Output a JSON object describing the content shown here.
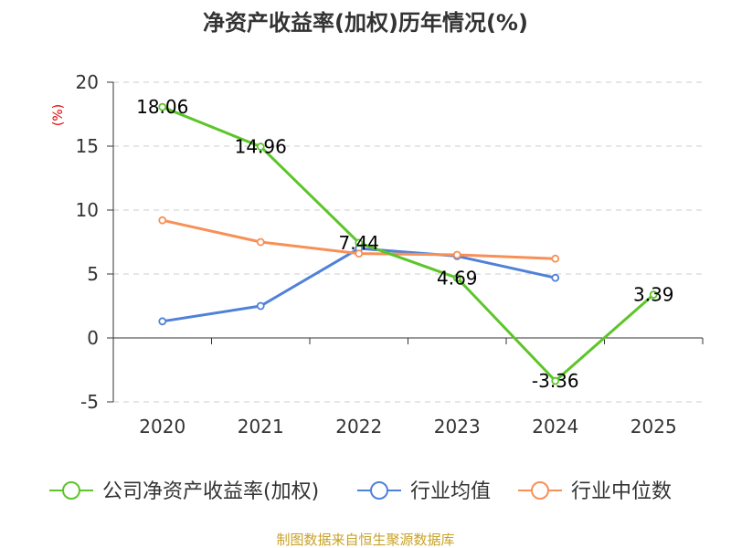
{
  "title": "净资产收益率(加权)历年情况(%)",
  "source": "制图数据来自恒生聚源数据库",
  "chart_data": {
    "type": "line",
    "title": "净资产收益率(加权)历年情况(%)",
    "ylabel": "(%)",
    "xlabel": "",
    "categories": [
      "2020",
      "2021",
      "2022",
      "2023",
      "2024",
      "2025"
    ],
    "ylim": [
      -5,
      20
    ],
    "yticks": [
      20,
      15,
      10,
      5,
      0,
      -5
    ],
    "grid": true,
    "legend_position": "bottom",
    "series": [
      {
        "name": "公司净资产收益率(加权)",
        "color": "#5cc52a",
        "values": [
          18.06,
          14.96,
          7.44,
          4.69,
          -3.36,
          3.39
        ],
        "labels": [
          "18.06",
          "14.96",
          "7.44",
          "4.69",
          "-3.36",
          "3.39"
        ]
      },
      {
        "name": "行业均值",
        "color": "#4f81d9",
        "values": [
          1.3,
          2.5,
          7.0,
          6.4,
          4.7,
          null
        ]
      },
      {
        "name": "行业中位数",
        "color": "#f79057",
        "values": [
          9.2,
          7.5,
          6.6,
          6.5,
          6.2,
          null
        ]
      }
    ]
  }
}
